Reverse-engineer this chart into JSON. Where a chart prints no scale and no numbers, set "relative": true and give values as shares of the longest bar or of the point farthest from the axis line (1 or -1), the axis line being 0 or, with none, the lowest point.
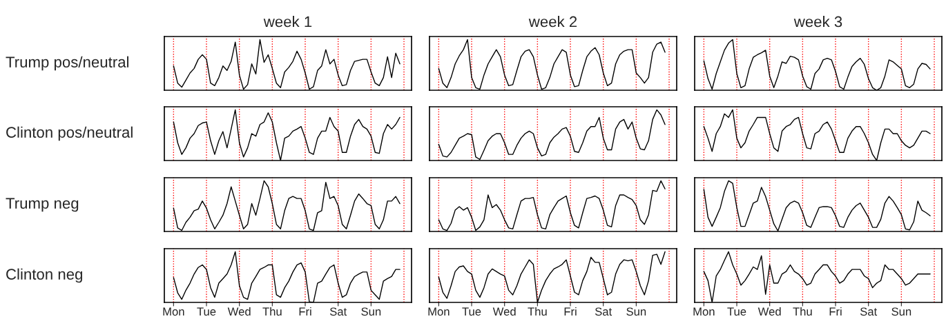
{
  "chart_data": [
    {
      "type": "line",
      "title": "week 1",
      "ylabel": "Trump pos/neutral",
      "relative": true,
      "categories": [
        null,
        null,
        null,
        null,
        null,
        null,
        null,
        null,
        null,
        null,
        null,
        null,
        null,
        null,
        null,
        null,
        null,
        null,
        null,
        null,
        null,
        null,
        null,
        null,
        null,
        null,
        null,
        null,
        null,
        null,
        null,
        null,
        null,
        null,
        null,
        null,
        null,
        null,
        null,
        null,
        null,
        null,
        null,
        null,
        null,
        null,
        null,
        null,
        null,
        null,
        null,
        null,
        null,
        null,
        null,
        null
      ],
      "grid": "x",
      "line_style": "solid",
      "series": [
        {
          "color": "#000000",
          "values": [
            0.48,
            0.14,
            0.06,
            0.2,
            0.34,
            0.43,
            0.61,
            0.7,
            0.61,
            0.14,
            0.09,
            0.25,
            0.48,
            0.39,
            0.57,
            0.95,
            0.3,
            0.02,
            0.11,
            0.52,
            0.32,
            1.0,
            0.55,
            0.7,
            0.43,
            0.14,
            0.05,
            0.36,
            0.45,
            0.57,
            0.77,
            0.61,
            0.34,
            0.02,
            0.07,
            0.39,
            0.48,
            0.8,
            0.52,
            0.61,
            0.3,
            0.09,
            0.11,
            0.39,
            0.57,
            0.59,
            0.61,
            0.61,
            0.36,
            0.14,
            0.09,
            0.25,
            0.66,
            0.25,
            0.73,
            0.52
          ]
        }
      ]
    },
    {
      "type": "line",
      "title": "week 2",
      "relative": true,
      "categories": [
        null,
        null,
        null,
        null,
        null,
        null,
        null,
        null,
        null,
        null,
        null,
        null,
        null,
        null,
        null,
        null,
        null,
        null,
        null,
        null,
        null,
        null,
        null,
        null,
        null,
        null,
        null,
        null,
        null,
        null,
        null,
        null,
        null,
        null,
        null,
        null,
        null,
        null,
        null,
        null,
        null,
        null,
        null,
        null,
        null,
        null,
        null,
        null,
        null,
        null,
        null,
        null,
        null,
        null,
        null,
        null
      ],
      "grid": "x",
      "line_style": "solid",
      "series": [
        {
          "color": "#000000",
          "values": [
            0.43,
            0.14,
            0.05,
            0.25,
            0.52,
            0.68,
            0.8,
            1.0,
            0.25,
            0.05,
            0.02,
            0.3,
            0.52,
            0.66,
            0.8,
            0.66,
            0.3,
            0.09,
            0.11,
            0.39,
            0.66,
            0.77,
            0.8,
            0.66,
            0.3,
            0.02,
            0.05,
            0.25,
            0.52,
            0.66,
            0.8,
            0.75,
            0.3,
            0.07,
            0.09,
            0.39,
            0.66,
            0.77,
            0.84,
            0.7,
            0.34,
            0.09,
            0.14,
            0.52,
            0.7,
            0.77,
            0.8,
            0.8,
            0.34,
            0.25,
            0.14,
            0.25,
            0.75,
            0.91,
            0.95,
            0.75
          ]
        }
      ]
    },
    {
      "type": "line",
      "title": "week 3",
      "relative": true,
      "categories": [
        null,
        null,
        null,
        null,
        null,
        null,
        null,
        null,
        null,
        null,
        null,
        null,
        null,
        null,
        null,
        null,
        null,
        null,
        null,
        null,
        null,
        null,
        null,
        null,
        null,
        null,
        null,
        null,
        null,
        null,
        null,
        null,
        null,
        null,
        null,
        null,
        null,
        null,
        null,
        null,
        null,
        null,
        null,
        null,
        null,
        null,
        null,
        null,
        null,
        null,
        null,
        null,
        null,
        null,
        null,
        null
      ],
      "grid": "x",
      "line_style": "solid",
      "series": [
        {
          "color": "#000000",
          "values": [
            0.58,
            0.23,
            0.02,
            0.33,
            0.56,
            0.79,
            0.93,
            1.0,
            0.33,
            0.05,
            0.09,
            0.42,
            0.65,
            0.7,
            0.74,
            0.79,
            0.28,
            0.05,
            0.28,
            0.56,
            0.53,
            0.67,
            0.65,
            0.6,
            0.28,
            0.07,
            0.02,
            0.33,
            0.42,
            0.6,
            0.63,
            0.6,
            0.37,
            0.07,
            0.02,
            0.26,
            0.47,
            0.56,
            0.63,
            0.51,
            0.23,
            0.05,
            0.0,
            0.05,
            0.28,
            0.6,
            0.56,
            0.49,
            0.42,
            0.09,
            0.05,
            0.12,
            0.42,
            0.53,
            0.51,
            0.42
          ]
        }
      ]
    },
    {
      "type": "line",
      "ylabel": "Clinton pos/neutral",
      "relative": true,
      "categories": [
        null,
        null,
        null,
        null,
        null,
        null,
        null,
        null,
        null,
        null,
        null,
        null,
        null,
        null,
        null,
        null,
        null,
        null,
        null,
        null,
        null,
        null,
        null,
        null,
        null,
        null,
        null,
        null,
        null,
        null,
        null,
        null,
        null,
        null,
        null,
        null,
        null,
        null,
        null,
        null,
        null,
        null,
        null,
        null,
        null,
        null,
        null,
        null,
        null,
        null,
        null,
        null,
        null,
        null,
        null,
        null
      ],
      "grid": "x",
      "line_style": "solid",
      "series": [
        {
          "color": "#000000",
          "values": [
            0.76,
            0.35,
            0.12,
            0.25,
            0.44,
            0.53,
            0.69,
            0.74,
            0.76,
            0.39,
            0.12,
            0.39,
            0.57,
            0.25,
            0.62,
            1.0,
            0.35,
            0.07,
            0.25,
            0.53,
            0.48,
            0.71,
            0.76,
            0.94,
            0.76,
            0.35,
            0.0,
            0.44,
            0.48,
            0.58,
            0.62,
            0.67,
            0.44,
            0.16,
            0.12,
            0.44,
            0.58,
            0.58,
            0.85,
            0.67,
            0.58,
            0.16,
            0.16,
            0.48,
            0.71,
            0.81,
            0.67,
            0.62,
            0.48,
            0.16,
            0.14,
            0.53,
            0.71,
            0.62,
            0.71,
            0.85
          ]
        }
      ]
    },
    {
      "type": "line",
      "relative": true,
      "categories": [
        null,
        null,
        null,
        null,
        null,
        null,
        null,
        null,
        null,
        null,
        null,
        null,
        null,
        null,
        null,
        null,
        null,
        null,
        null,
        null,
        null,
        null,
        null,
        null,
        null,
        null,
        null,
        null,
        null,
        null,
        null,
        null,
        null,
        null,
        null,
        null,
        null,
        null,
        null,
        null,
        null,
        null,
        null,
        null,
        null,
        null,
        null,
        null,
        null,
        null,
        null,
        null,
        null,
        null,
        null,
        null
      ],
      "grid": "x",
      "line_style": "solid",
      "series": [
        {
          "color": "#000000",
          "values": [
            0.32,
            0.09,
            0.07,
            0.16,
            0.3,
            0.44,
            0.48,
            0.53,
            0.51,
            0.07,
            0.02,
            0.2,
            0.39,
            0.48,
            0.53,
            0.53,
            0.35,
            0.12,
            0.12,
            0.3,
            0.44,
            0.53,
            0.58,
            0.53,
            0.25,
            0.09,
            0.12,
            0.35,
            0.46,
            0.53,
            0.62,
            0.65,
            0.48,
            0.18,
            0.16,
            0.35,
            0.58,
            0.67,
            0.67,
            0.85,
            0.44,
            0.21,
            0.21,
            0.62,
            0.76,
            0.81,
            0.62,
            0.76,
            0.44,
            0.23,
            0.21,
            0.39,
            0.81,
            1.0,
            0.9,
            0.71
          ]
        }
      ]
    },
    {
      "type": "line",
      "relative": true,
      "categories": [
        null,
        null,
        null,
        null,
        null,
        null,
        null,
        null,
        null,
        null,
        null,
        null,
        null,
        null,
        null,
        null,
        null,
        null,
        null,
        null,
        null,
        null,
        null,
        null,
        null,
        null,
        null,
        null,
        null,
        null,
        null,
        null,
        null,
        null,
        null,
        null,
        null,
        null,
        null,
        null,
        null,
        null,
        null,
        null,
        null,
        null,
        null,
        null,
        null,
        null,
        null,
        null,
        null,
        null,
        null,
        null
      ],
      "grid": "x",
      "line_style": "solid",
      "series": [
        {
          "color": "#000000",
          "values": [
            0.67,
            0.44,
            0.18,
            0.53,
            0.67,
            0.92,
            0.85,
            1.0,
            0.44,
            0.25,
            0.35,
            0.58,
            0.71,
            0.85,
            0.85,
            0.85,
            0.53,
            0.25,
            0.18,
            0.58,
            0.67,
            0.71,
            0.81,
            0.85,
            0.53,
            0.25,
            0.23,
            0.53,
            0.58,
            0.71,
            0.76,
            0.62,
            0.39,
            0.16,
            0.16,
            0.44,
            0.58,
            0.67,
            0.67,
            0.53,
            0.35,
            0.12,
            0.0,
            0.35,
            0.62,
            0.62,
            0.53,
            0.53,
            0.39,
            0.3,
            0.25,
            0.3,
            0.44,
            0.58,
            0.58,
            0.53
          ]
        }
      ]
    },
    {
      "type": "line",
      "ylabel": "Trump neg",
      "relative": true,
      "categories": [
        null,
        null,
        null,
        null,
        null,
        null,
        null,
        null,
        null,
        null,
        null,
        null,
        null,
        null,
        null,
        null,
        null,
        null,
        null,
        null,
        null,
        null,
        null,
        null,
        null,
        null,
        null,
        null,
        null,
        null,
        null,
        null,
        null,
        null,
        null,
        null,
        null,
        null,
        null,
        null,
        null,
        null,
        null,
        null,
        null,
        null,
        null,
        null,
        null,
        null,
        null,
        null,
        null,
        null,
        null,
        null
      ],
      "grid": "x",
      "line_style": "solid",
      "series": [
        {
          "color": "#000000",
          "values": [
            0.46,
            0.07,
            0.02,
            0.18,
            0.28,
            0.41,
            0.44,
            0.6,
            0.46,
            0.23,
            0.05,
            0.18,
            0.32,
            0.55,
            0.88,
            0.6,
            0.32,
            0.05,
            0.14,
            0.55,
            0.32,
            0.65,
            1.0,
            0.88,
            0.55,
            0.14,
            0.05,
            0.41,
            0.65,
            0.69,
            0.65,
            0.65,
            0.41,
            0.05,
            0.02,
            0.37,
            0.41,
            0.97,
            0.65,
            0.69,
            0.51,
            0.14,
            0.05,
            0.32,
            0.6,
            0.74,
            0.65,
            0.55,
            0.51,
            0.14,
            0.05,
            0.23,
            0.6,
            0.6,
            0.69,
            0.55
          ]
        }
      ]
    },
    {
      "type": "line",
      "relative": true,
      "categories": [
        null,
        null,
        null,
        null,
        null,
        null,
        null,
        null,
        null,
        null,
        null,
        null,
        null,
        null,
        null,
        null,
        null,
        null,
        null,
        null,
        null,
        null,
        null,
        null,
        null,
        null,
        null,
        null,
        null,
        null,
        null,
        null,
        null,
        null,
        null,
        null,
        null,
        null,
        null,
        null,
        null,
        null,
        null,
        null,
        null,
        null,
        null,
        null,
        null,
        null,
        null,
        null,
        null,
        null,
        null,
        null
      ],
      "grid": "x",
      "line_style": "solid",
      "series": [
        {
          "color": "#000000",
          "values": [
            0.23,
            0.05,
            0.02,
            0.16,
            0.42,
            0.49,
            0.42,
            0.47,
            0.28,
            0.02,
            0.09,
            0.23,
            0.72,
            0.47,
            0.53,
            0.42,
            0.23,
            0.07,
            0.05,
            0.33,
            0.6,
            0.65,
            0.65,
            0.67,
            0.33,
            0.07,
            0.05,
            0.33,
            0.47,
            0.6,
            0.65,
            0.7,
            0.37,
            0.12,
            0.07,
            0.37,
            0.65,
            0.67,
            0.7,
            0.65,
            0.42,
            0.12,
            0.09,
            0.51,
            0.72,
            0.72,
            0.67,
            0.63,
            0.51,
            0.23,
            0.14,
            0.33,
            0.81,
            0.79,
            1.0,
            0.84
          ]
        }
      ]
    },
    {
      "type": "line",
      "relative": true,
      "categories": [
        null,
        null,
        null,
        null,
        null,
        null,
        null,
        null,
        null,
        null,
        null,
        null,
        null,
        null,
        null,
        null,
        null,
        null,
        null,
        null,
        null,
        null,
        null,
        null,
        null,
        null,
        null,
        null,
        null,
        null,
        null,
        null,
        null,
        null,
        null,
        null,
        null,
        null,
        null,
        null,
        null,
        null,
        null,
        null,
        null,
        null,
        null,
        null,
        null,
        null,
        null,
        null,
        null,
        null,
        null,
        null
      ],
      "grid": "x",
      "line_style": "solid",
      "series": [
        {
          "color": "#000000",
          "values": [
            0.83,
            0.28,
            0.1,
            0.28,
            0.47,
            0.79,
            1.0,
            0.95,
            0.47,
            0.1,
            0.1,
            0.33,
            0.56,
            0.6,
            0.87,
            0.69,
            0.42,
            0.15,
            0.01,
            0.24,
            0.47,
            0.56,
            0.6,
            0.56,
            0.37,
            0.12,
            0.08,
            0.28,
            0.47,
            0.49,
            0.49,
            0.47,
            0.31,
            0.1,
            0.08,
            0.28,
            0.42,
            0.51,
            0.56,
            0.42,
            0.28,
            0.08,
            0.08,
            0.24,
            0.56,
            0.69,
            0.6,
            0.47,
            0.33,
            0.05,
            0.03,
            0.19,
            0.6,
            0.42,
            0.37,
            0.31
          ]
        }
      ]
    },
    {
      "type": "line",
      "ylabel": "Clinton neg",
      "relative": true,
      "categories": [
        "Mon",
        null,
        null,
        null,
        null,
        null,
        null,
        null,
        "Tue",
        null,
        null,
        null,
        null,
        null,
        null,
        null,
        "Wed",
        null,
        null,
        null,
        null,
        null,
        null,
        null,
        "Thu",
        null,
        null,
        null,
        null,
        null,
        null,
        null,
        "Fri",
        null,
        null,
        null,
        null,
        null,
        null,
        null,
        "Sat",
        null,
        null,
        null,
        null,
        null,
        null,
        null,
        "Sun",
        null,
        null,
        null,
        null,
        null,
        null,
        null
      ],
      "grid": "x",
      "line_style": "solid",
      "series": [
        {
          "color": "#000000",
          "values": [
            0.49,
            0.19,
            0.06,
            0.24,
            0.38,
            0.56,
            0.69,
            0.74,
            0.65,
            0.29,
            0.1,
            0.38,
            0.47,
            0.56,
            0.74,
            1.0,
            0.33,
            0.1,
            0.06,
            0.38,
            0.51,
            0.65,
            0.69,
            0.74,
            0.74,
            0.15,
            0.1,
            0.29,
            0.42,
            0.6,
            0.74,
            0.78,
            0.6,
            0.01,
            0.0,
            0.38,
            0.42,
            0.56,
            0.69,
            0.74,
            0.38,
            0.1,
            0.15,
            0.38,
            0.51,
            0.56,
            0.6,
            0.6,
            0.24,
            0.15,
            0.06,
            0.42,
            0.47,
            0.51,
            0.65,
            0.65
          ]
        }
      ]
    },
    {
      "type": "line",
      "relative": true,
      "categories": [
        "Mon",
        null,
        null,
        null,
        null,
        null,
        null,
        null,
        "Tue",
        null,
        null,
        null,
        null,
        null,
        null,
        null,
        "Wed",
        null,
        null,
        null,
        null,
        null,
        null,
        null,
        "Thu",
        null,
        null,
        null,
        null,
        null,
        null,
        null,
        "Fri",
        null,
        null,
        null,
        null,
        null,
        null,
        null,
        "Sat",
        null,
        null,
        null,
        null,
        null,
        null,
        null,
        "Sun",
        null,
        null,
        null,
        null,
        null,
        null,
        null
      ],
      "grid": "x",
      "line_style": "solid",
      "series": [
        {
          "color": "#000000",
          "values": [
            0.5,
            0.2,
            0.08,
            0.33,
            0.61,
            0.7,
            0.72,
            0.61,
            0.56,
            0.24,
            0.1,
            0.29,
            0.56,
            0.66,
            0.61,
            0.56,
            0.52,
            0.24,
            0.15,
            0.33,
            0.56,
            0.7,
            0.84,
            0.75,
            0.0,
            0.24,
            0.43,
            0.56,
            0.66,
            0.7,
            0.75,
            0.84,
            0.52,
            0.2,
            0.15,
            0.43,
            0.61,
            0.89,
            0.79,
            0.79,
            0.47,
            0.15,
            0.2,
            0.56,
            0.75,
            0.84,
            0.82,
            0.84,
            0.61,
            0.33,
            0.15,
            0.43,
            0.93,
            0.95,
            0.75,
            1.0
          ]
        }
      ]
    },
    {
      "type": "line",
      "relative": true,
      "categories": [
        "Mon",
        null,
        null,
        null,
        null,
        null,
        null,
        null,
        "Tue",
        null,
        null,
        null,
        null,
        null,
        null,
        null,
        "Wed",
        null,
        null,
        null,
        null,
        null,
        null,
        null,
        "Thu",
        null,
        null,
        null,
        null,
        null,
        null,
        null,
        "Fri",
        null,
        null,
        null,
        null,
        null,
        null,
        null,
        "Sat",
        null,
        null,
        null,
        null,
        null,
        null,
        null,
        "Sun",
        null,
        null,
        null,
        null,
        null,
        null,
        null
      ],
      "grid": "x",
      "line_style": "solid",
      "series": [
        {
          "color": "#000000",
          "values": [
            0.61,
            0.43,
            0.0,
            0.52,
            0.65,
            0.83,
            1.0,
            0.74,
            0.56,
            0.34,
            0.43,
            0.56,
            0.7,
            0.65,
            0.92,
            0.16,
            0.74,
            0.38,
            0.38,
            0.56,
            0.61,
            0.74,
            0.61,
            0.56,
            0.47,
            0.34,
            0.38,
            0.56,
            0.65,
            0.74,
            0.74,
            0.61,
            0.52,
            0.38,
            0.43,
            0.56,
            0.65,
            0.65,
            0.65,
            0.52,
            0.47,
            0.29,
            0.38,
            0.43,
            0.74,
            0.65,
            0.65,
            0.56,
            0.47,
            0.34,
            0.38,
            0.47,
            0.56,
            0.56,
            0.56,
            0.56
          ]
        }
      ]
    }
  ]
}
